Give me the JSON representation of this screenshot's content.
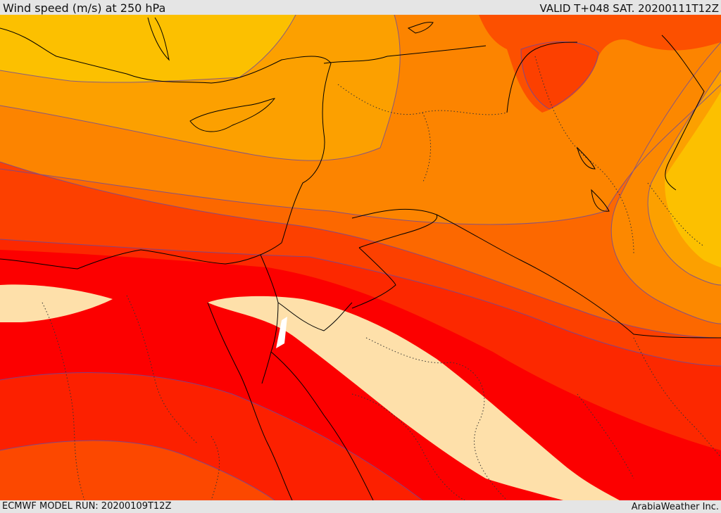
{
  "header": {
    "title": "Wind speed (m/s) at 250 hPa",
    "valid": "VALID T+048 SAT. 20200111T12Z"
  },
  "footer": {
    "model_run": "ECMWF MODEL RUN: 20200109T12Z",
    "credit": "ArabiaWeather Inc."
  },
  "map": {
    "field": "wind-speed-250hPa",
    "palette": [
      "#fcc000",
      "#fca000",
      "#fc8000",
      "#fc6000",
      "#fc4000",
      "#fc2000",
      "#fc0000",
      "#fee0aa",
      "#ffff40"
    ],
    "contour_line_color": "#6a4aa0",
    "coastline_color": "#000000"
  }
}
